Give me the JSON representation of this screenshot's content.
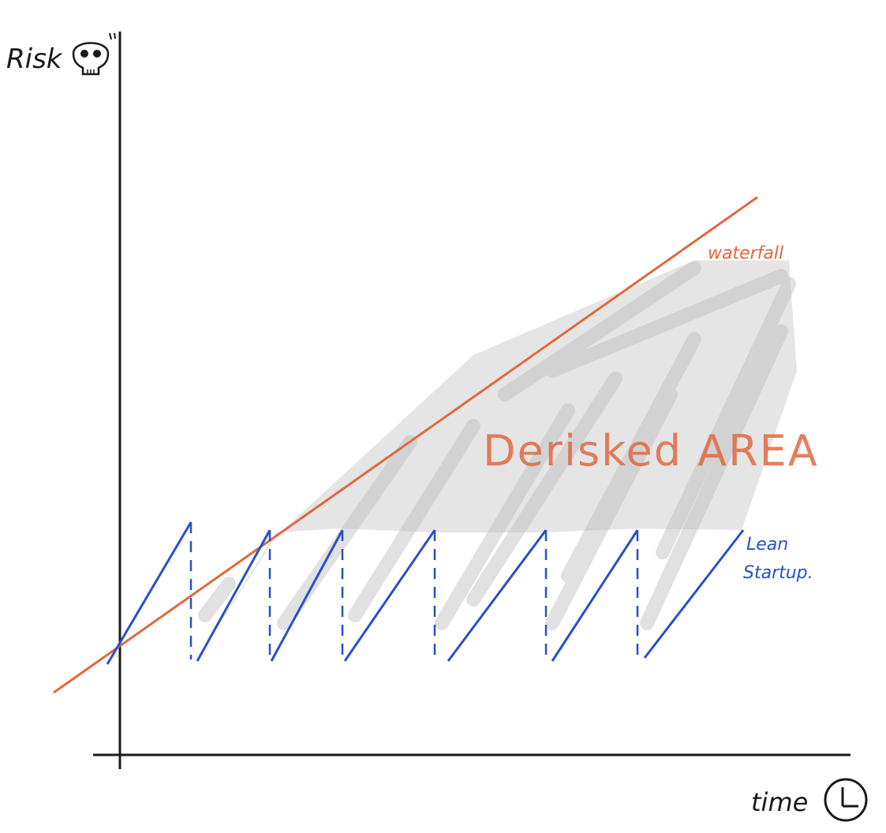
{
  "axes": {
    "y_label": "Risk",
    "x_label": "time"
  },
  "icons": {
    "y_axis_icon": "skull-icon",
    "x_axis_icon": "clock-icon"
  },
  "annotations": {
    "area_label": "Derisked AREA"
  },
  "series": {
    "waterfall": {
      "name": "waterfall",
      "color": "#e0683f"
    },
    "lean_startup": {
      "name_line1": "Lean",
      "name_line2": "Startup.",
      "color": "#2a4fc9",
      "cycles": 7
    }
  },
  "derisked_area_color": "#c9c9c9"
}
